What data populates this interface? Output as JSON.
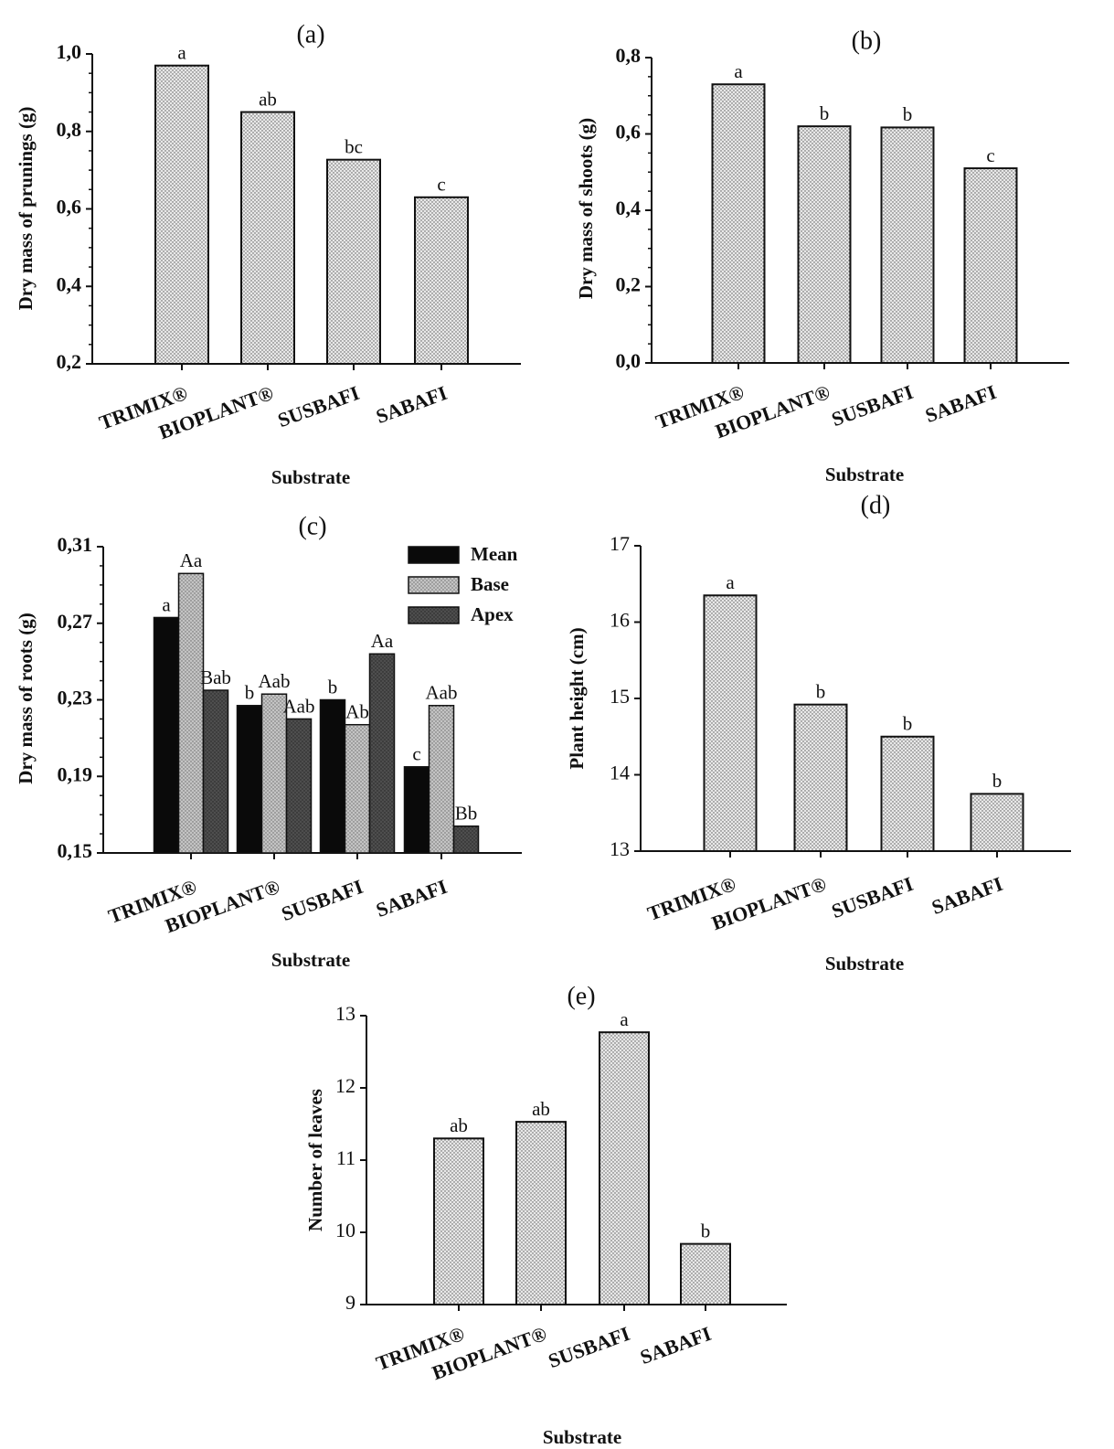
{
  "figure_colors": {
    "bar_fill": "#e6e6e6",
    "bar_stroke": "#111111",
    "mean": "#0a0a0a",
    "base": "#b4b4b4",
    "apex": "#4a4a4a"
  },
  "chart_data": [
    {
      "id": "a",
      "type": "bar",
      "panel_label": "(a)",
      "categories": [
        "TRIMIX®",
        "BIOPLANT®",
        "SUSBAFI",
        "SABAFI"
      ],
      "values": [
        0.97,
        0.85,
        0.727,
        0.63
      ],
      "significance": [
        "a",
        "ab",
        "bc",
        "c"
      ],
      "xlabel": "Substrate",
      "ylabel": "Dry mass of prunings (g)",
      "ylim": [
        0.2,
        1.0
      ],
      "yticks": [
        0.2,
        0.4,
        0.6,
        0.8,
        1.0
      ],
      "ytick_labels": [
        "0,2",
        "0,4",
        "0,6",
        "0,8",
        "1,0"
      ],
      "minor_ticks": true,
      "bold_ticks": true,
      "grid": false
    },
    {
      "id": "b",
      "type": "bar",
      "panel_label": "(b)",
      "categories": [
        "TRIMIX®",
        "BIOPLANT®",
        "SUSBAFI",
        "SABAFI"
      ],
      "values": [
        0.73,
        0.62,
        0.617,
        0.51
      ],
      "significance": [
        "a",
        "b",
        "b",
        "c"
      ],
      "xlabel": "Substrate",
      "ylabel": "Dry mass of shoots (g)",
      "ylim": [
        0.0,
        0.8
      ],
      "yticks": [
        0.0,
        0.2,
        0.4,
        0.6,
        0.8
      ],
      "ytick_labels": [
        "0,0",
        "0,2",
        "0,4",
        "0,6",
        "0,8"
      ],
      "minor_ticks": true,
      "bold_ticks": true,
      "grid": false
    },
    {
      "id": "c",
      "type": "bar",
      "panel_label": "(c)",
      "categories": [
        "TRIMIX®",
        "BIOPLANT®",
        "SUSBAFI",
        "SABAFI"
      ],
      "series": [
        {
          "name": "Mean",
          "values": [
            0.273,
            0.227,
            0.23,
            0.195
          ],
          "significance": [
            "a",
            "b",
            "b",
            "c"
          ]
        },
        {
          "name": "Base",
          "values": [
            0.296,
            0.233,
            0.217,
            0.227
          ],
          "significance": [
            "Aa",
            "Aab",
            "Ab",
            "Aab"
          ]
        },
        {
          "name": "Apex",
          "values": [
            0.235,
            0.22,
            0.254,
            0.164
          ],
          "significance": [
            "Bab",
            "Aab",
            "Aa",
            "Bb"
          ]
        }
      ],
      "xlabel": "Substrate",
      "ylabel": "Dry mass of roots (g)",
      "ylim": [
        0.15,
        0.31
      ],
      "yticks": [
        0.15,
        0.19,
        0.23,
        0.27,
        0.31
      ],
      "ytick_labels": [
        "0,15",
        "0,19",
        "0,23",
        "0,27",
        "0,31"
      ],
      "legend": "top-right",
      "minor_ticks": true,
      "bold_ticks": true,
      "grid": false
    },
    {
      "id": "d",
      "type": "bar",
      "panel_label": "(d)",
      "categories": [
        "TRIMIX®",
        "BIOPLANT®",
        "SUSBAFI",
        "SABAFI"
      ],
      "values": [
        16.35,
        14.92,
        14.5,
        13.75
      ],
      "significance": [
        "a",
        "b",
        "b",
        "b"
      ],
      "xlabel": "Substrate",
      "ylabel": "Plant height (cm)",
      "ylim": [
        13,
        17
      ],
      "yticks": [
        13,
        14,
        15,
        16,
        17
      ],
      "ytick_labels": [
        "13",
        "14",
        "15",
        "16",
        "17"
      ],
      "minor_ticks": false,
      "bold_ticks": false,
      "grid": false
    },
    {
      "id": "e",
      "type": "bar",
      "panel_label": "(e)",
      "categories": [
        "TRIMIX®",
        "BIOPLANT®",
        "SUSBAFI",
        "SABAFI"
      ],
      "values": [
        11.3,
        11.53,
        12.77,
        9.84
      ],
      "significance": [
        "ab",
        "ab",
        "a",
        "b"
      ],
      "xlabel": "Substrate",
      "ylabel": "Number of leaves",
      "ylim": [
        9,
        13
      ],
      "yticks": [
        9,
        10,
        11,
        12,
        13
      ],
      "ytick_labels": [
        "9",
        "10",
        "11",
        "12",
        "13"
      ],
      "minor_ticks": false,
      "bold_ticks": false,
      "grid": false
    }
  ]
}
